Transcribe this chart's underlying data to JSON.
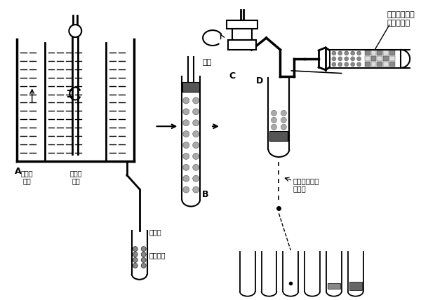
{
  "bg_color": "#ffffff",
  "line_color": "#000000",
  "labels": {
    "A": "A",
    "B": "B",
    "C": "C",
    "D": "D",
    "low_density": "低密度",
    "solution": "溶液",
    "high_density": "高密度",
    "centrifuge_tube": "离心管",
    "density_gradient": "密度梯度",
    "sample": "样品",
    "separation_reason_1": "由于沉降系数",
    "separation_reason_2": "不同而分离",
    "collect_1": "管底打孔收集",
    "collect_2": "各组分"
  }
}
